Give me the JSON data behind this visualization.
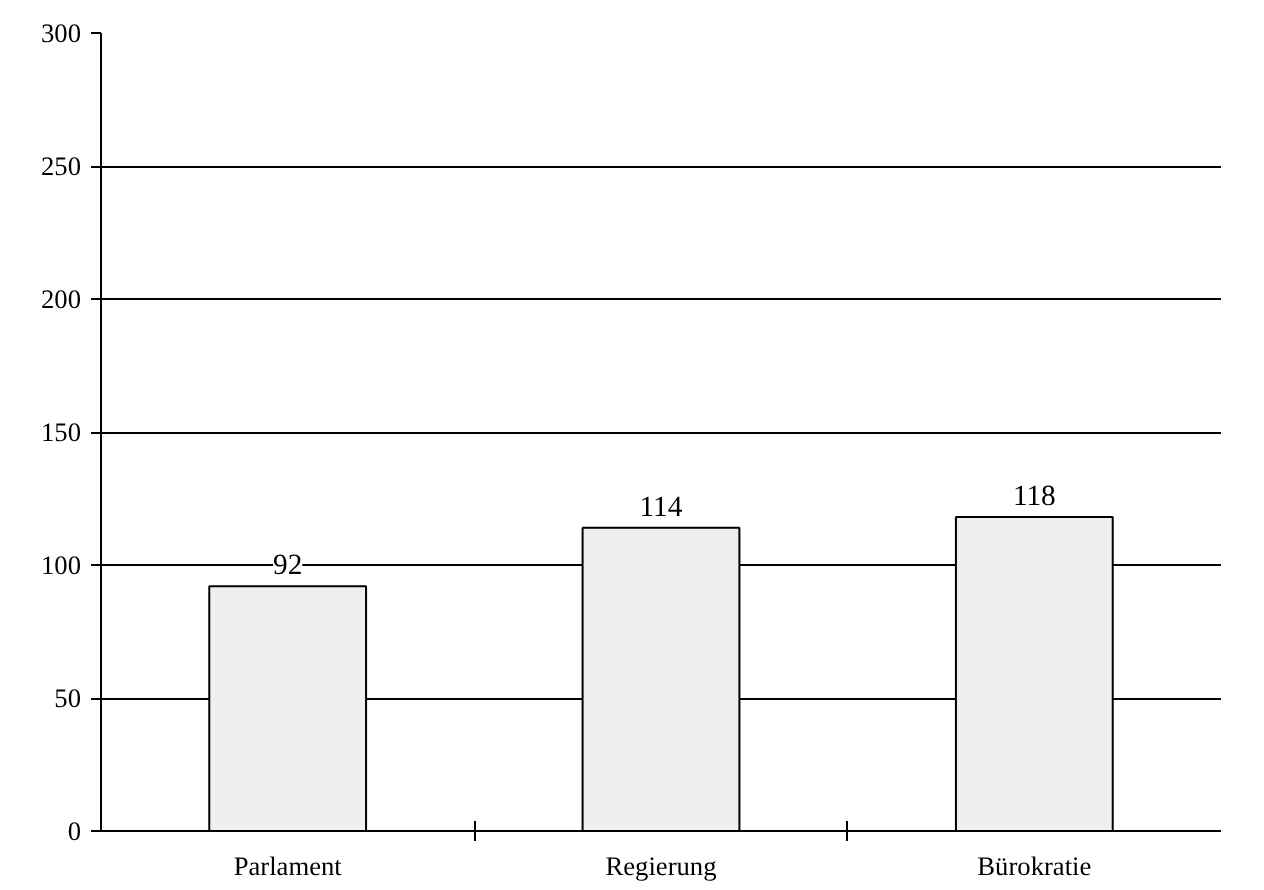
{
  "chart_data": {
    "type": "bar",
    "categories": [
      "Parlament",
      "Regierung",
      "Bürokratie"
    ],
    "values": [
      92,
      114,
      118
    ],
    "color": "#efefef",
    "ylim": [
      0,
      300
    ],
    "yticks": [
      0,
      50,
      100,
      150,
      200,
      250,
      300
    ],
    "grid": "y",
    "data_labels": true
  }
}
